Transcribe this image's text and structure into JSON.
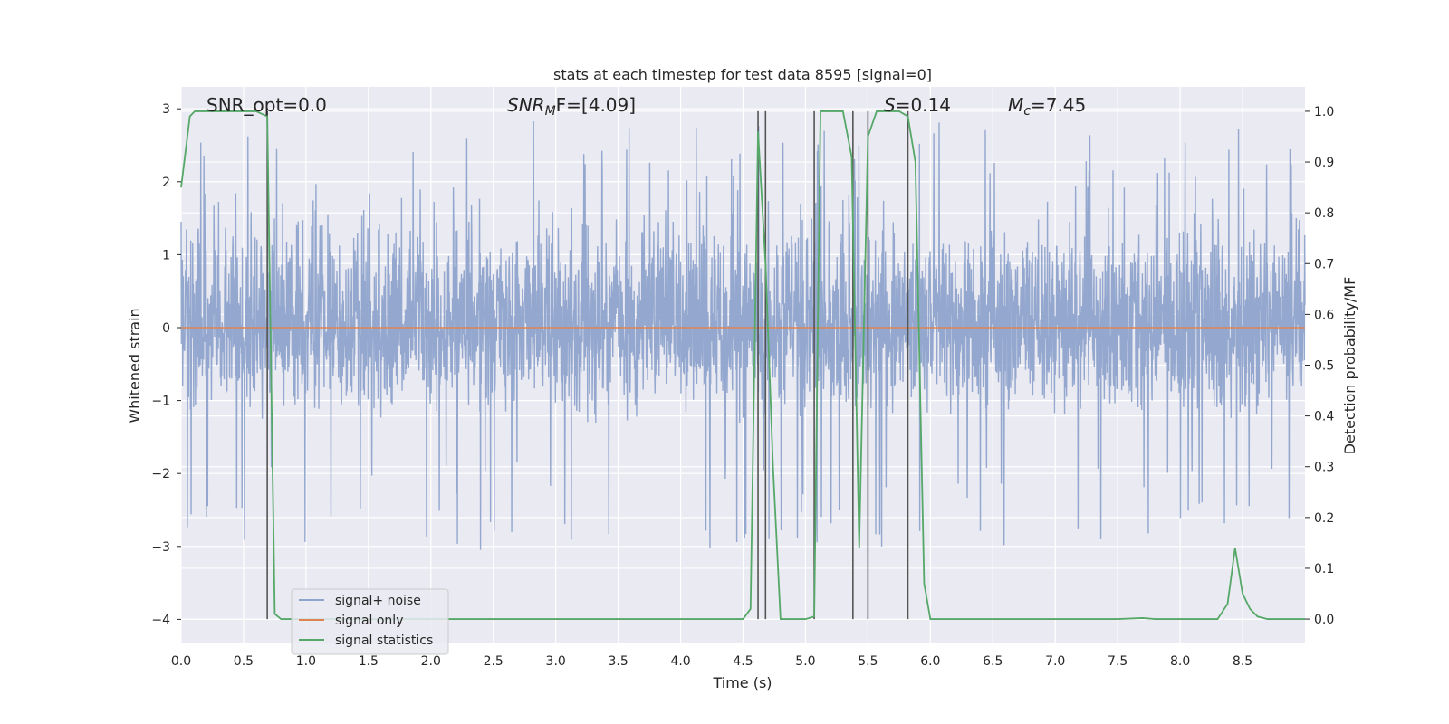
{
  "chart_data": {
    "type": "line",
    "title": "stats at each timestep for test data 8595 [signal=0]",
    "xlabel": "Time (s)",
    "ylabel": "Whitened strain",
    "y2label": "Detection probability/MF",
    "xlim": [
      0.0,
      9.0
    ],
    "ylim": [
      -4.33,
      3.3
    ],
    "y2lim": [
      -0.048,
      1.048
    ],
    "xticks": [
      "0.0",
      "0.5",
      "1.0",
      "1.5",
      "2.0",
      "2.5",
      "3.0",
      "3.5",
      "4.0",
      "4.5",
      "5.0",
      "5.5",
      "6.0",
      "6.5",
      "7.0",
      "7.5",
      "8.0",
      "8.5"
    ],
    "yticks": [
      "3",
      "2",
      "1",
      "0",
      "−1",
      "−2",
      "−3",
      "−4"
    ],
    "y2ticks": [
      "1.0",
      "0.9",
      "0.8",
      "0.7",
      "0.6",
      "0.5",
      "0.4",
      "0.3",
      "0.2",
      "0.1",
      "0.0"
    ],
    "grid": true,
    "legend_position": "lower-left",
    "annotations": {
      "snr_opt": "SNR_opt=0.0",
      "snr_mf_sym": "SNR",
      "snr_mf_sub": "M",
      "snr_mf_rest": "F=[4.09]",
      "s_sym": "S",
      "s_rest": "=0.14",
      "mc_sym": "M",
      "mc_sub": "c",
      "mc_rest": "=7.45"
    },
    "series": [
      {
        "name": "signal+ noise",
        "color": "#8fa4cc",
        "kind": "noise",
        "core_range": [
          -1.2,
          1.6
        ],
        "extreme_range": [
          -3.05,
          2.85
        ]
      },
      {
        "name": "signal only",
        "color": "#dd8452",
        "kind": "constant",
        "value": 0.0
      },
      {
        "name": "signal statistics",
        "color": "#55a868",
        "axis": "right",
        "x": [
          0.0,
          0.07,
          0.11,
          0.2,
          0.3,
          0.4,
          0.5,
          0.6,
          0.69,
          0.75,
          0.8,
          0.85,
          1.0,
          1.5,
          2.0,
          2.5,
          3.0,
          3.5,
          4.0,
          4.5,
          4.56,
          4.62,
          4.68,
          4.74,
          4.8,
          4.9,
          5.0,
          5.07,
          5.12,
          5.2,
          5.3,
          5.37,
          5.43,
          5.5,
          5.57,
          5.65,
          5.75,
          5.82,
          5.88,
          5.95,
          6.0,
          6.5,
          7.0,
          7.5,
          7.7,
          7.8,
          8.0,
          8.3,
          8.38,
          8.44,
          8.5,
          8.56,
          8.62,
          8.7,
          8.8,
          9.0
        ],
        "values": [
          0.85,
          0.99,
          1.0,
          1.0,
          1.0,
          1.0,
          1.0,
          1.0,
          0.99,
          0.01,
          0.0,
          0.0,
          0.0,
          0.0,
          0.0,
          0.0,
          0.0,
          0.0,
          0.0,
          0.0,
          0.02,
          0.96,
          0.7,
          0.3,
          0.0,
          0.0,
          0.0,
          0.005,
          1.0,
          1.0,
          1.0,
          0.91,
          0.14,
          0.95,
          1.0,
          1.0,
          1.0,
          0.99,
          0.9,
          0.07,
          0.0,
          0.0,
          0.0,
          0.0,
          0.002,
          0.0,
          0.0,
          0.0,
          0.03,
          0.14,
          0.05,
          0.02,
          0.005,
          0.0,
          0.0,
          0.0
        ]
      }
    ],
    "vlines": [
      0.69,
      4.62,
      4.68,
      5.07,
      5.38,
      5.5,
      5.82
    ]
  }
}
